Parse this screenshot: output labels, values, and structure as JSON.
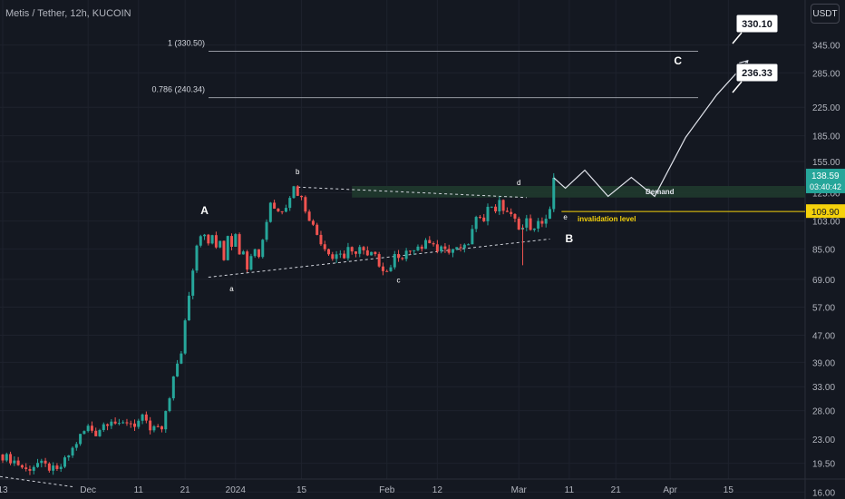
{
  "header": {
    "symbol_line": "Metis / Tether, 12h, KUCOIN",
    "currency_button": "USDT"
  },
  "colors": {
    "background": "#141821",
    "up": "#26a69a",
    "down": "#ef5350",
    "grid": "#1e222d",
    "demand_zone": "#1f3a2d",
    "invalidation": "#f5d20b",
    "projection": "#e0e3eb",
    "fib_line": "#9598a1"
  },
  "chart_data": {
    "type": "candlestick",
    "title": "Metis / Tether, 12h, KUCOIN",
    "y_scale": "log",
    "ylim": [
      17.5,
      470
    ],
    "y_ticks": [
      "345.00",
      "285.00",
      "225.00",
      "185.00",
      "155.00",
      "125.00",
      "103.00",
      "85.00",
      "69.00",
      "57.00",
      "47.00",
      "39.00",
      "33.00",
      "28.00",
      "23.00",
      "19.50",
      "16.00"
    ],
    "x_ticks": [
      "13",
      "Dec",
      "11",
      "21",
      "2024",
      "15",
      "Feb",
      "12",
      "Mar",
      "11",
      "21",
      "Apr",
      "15"
    ],
    "price_labels": {
      "last_price": "138.59",
      "countdown": "03:40:42",
      "invalidation_price": "109.90"
    },
    "fib_levels": [
      {
        "label": "1 (330.50)",
        "value": 330.5
      },
      {
        "label": "0.786 (240.34)",
        "value": 240.34
      }
    ],
    "targets": [
      {
        "label": "330.10",
        "value": 330.1
      },
      {
        "label": "236.33",
        "value": 236.33
      }
    ],
    "zones": [
      {
        "label": "Demand",
        "low": 121,
        "high": 131
      }
    ],
    "levels": [
      {
        "label": "invalidation level",
        "value": 109.9
      }
    ],
    "wave_labels": [
      "A",
      "a",
      "b",
      "c",
      "d",
      "e",
      "B",
      "C"
    ],
    "price_path": [
      [
        0,
        20.5
      ],
      [
        3,
        19.8
      ],
      [
        6,
        18.6
      ],
      [
        9,
        19.5
      ],
      [
        12,
        18.9
      ],
      [
        14,
        18.4
      ],
      [
        16,
        19.8
      ],
      [
        18,
        21.5
      ],
      [
        20,
        23.5
      ],
      [
        22,
        25
      ],
      [
        24,
        24
      ],
      [
        26,
        25.5
      ],
      [
        28,
        26.5
      ],
      [
        30,
        25
      ],
      [
        32,
        26
      ],
      [
        34,
        25.5
      ],
      [
        36,
        26.5
      ],
      [
        38,
        24.5
      ],
      [
        40,
        25
      ],
      [
        41,
        24
      ],
      [
        42,
        28
      ],
      [
        43,
        31
      ],
      [
        44,
        35
      ],
      [
        45,
        38
      ],
      [
        46,
        42
      ],
      [
        47,
        52
      ],
      [
        48,
        63
      ],
      [
        49,
        75
      ],
      [
        50,
        88
      ],
      [
        51,
        95
      ],
      [
        52,
        92
      ],
      [
        53,
        88
      ],
      [
        54,
        94
      ],
      [
        55,
        84
      ],
      [
        56,
        90
      ],
      [
        57,
        80
      ],
      [
        58,
        94
      ],
      [
        59,
        88
      ],
      [
        60,
        96
      ],
      [
        61,
        84
      ],
      [
        62,
        82
      ],
      [
        63,
        76
      ],
      [
        64,
        83
      ],
      [
        65,
        87
      ],
      [
        66,
        80
      ],
      [
        67,
        92
      ],
      [
        68,
        103
      ],
      [
        69,
        118
      ],
      [
        70,
        113
      ],
      [
        71,
        110
      ],
      [
        72,
        112
      ],
      [
        73,
        116
      ],
      [
        74,
        123
      ],
      [
        75,
        130
      ],
      [
        76,
        125
      ],
      [
        77,
        120
      ],
      [
        78,
        112
      ],
      [
        79,
        106
      ],
      [
        80,
        99
      ],
      [
        81,
        94
      ],
      [
        82,
        90
      ],
      [
        83,
        86
      ],
      [
        84,
        84
      ],
      [
        85,
        80
      ],
      [
        86,
        82
      ],
      [
        87,
        83
      ],
      [
        88,
        80
      ],
      [
        89,
        84
      ],
      [
        90,
        82
      ],
      [
        91,
        84
      ],
      [
        92,
        86
      ],
      [
        93,
        83
      ],
      [
        94,
        80
      ],
      [
        95,
        82
      ],
      [
        96,
        80
      ],
      [
        97,
        77
      ],
      [
        98,
        75
      ],
      [
        99,
        73
      ],
      [
        100,
        76
      ],
      [
        101,
        80
      ],
      [
        102,
        82
      ],
      [
        103,
        81
      ],
      [
        104,
        84
      ],
      [
        105,
        82
      ],
      [
        106,
        85
      ],
      [
        107,
        86
      ],
      [
        108,
        84
      ],
      [
        109,
        88
      ],
      [
        110,
        90
      ],
      [
        111,
        87
      ],
      [
        112,
        86
      ],
      [
        113,
        89
      ],
      [
        114,
        85
      ],
      [
        115,
        83
      ],
      [
        116,
        85
      ],
      [
        117,
        84
      ],
      [
        118,
        86
      ],
      [
        119,
        85
      ],
      [
        120,
        89
      ],
      [
        121,
        96
      ],
      [
        122,
        103
      ],
      [
        123,
        108
      ],
      [
        124,
        106
      ],
      [
        125,
        112
      ],
      [
        126,
        115
      ],
      [
        127,
        112
      ],
      [
        128,
        116
      ],
      [
        129,
        112
      ],
      [
        130,
        110
      ],
      [
        131,
        106
      ],
      [
        132,
        103
      ],
      [
        133,
        100
      ],
      [
        134,
        98
      ],
      [
        135,
        103
      ],
      [
        136,
        99
      ],
      [
        137,
        96
      ],
      [
        138,
        101
      ],
      [
        139,
        103
      ],
      [
        140,
        105
      ],
      [
        141,
        110
      ],
      [
        142,
        138.59
      ]
    ],
    "projection": [
      [
        142,
        138.59
      ],
      [
        145,
        129
      ],
      [
        150,
        146
      ],
      [
        156,
        122
      ],
      [
        162,
        139
      ],
      [
        168,
        122
      ],
      [
        176,
        183
      ],
      [
        184,
        245
      ],
      [
        192,
        310
      ]
    ]
  }
}
